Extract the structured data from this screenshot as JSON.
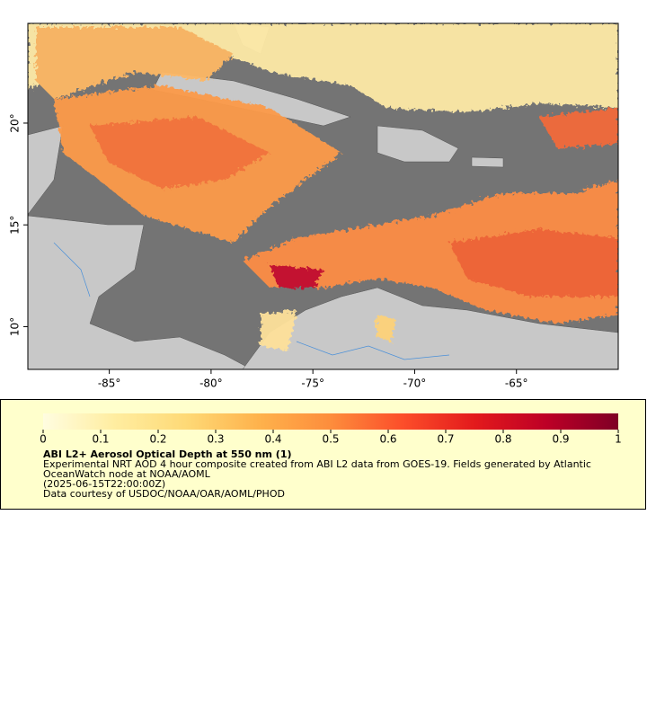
{
  "map": {
    "lon_range": [
      -89,
      -60
    ],
    "lat_range": [
      7.9,
      24.9
    ],
    "lon_ticks": [
      {
        "value": -85,
        "label": "-85°"
      },
      {
        "value": -80,
        "label": "-80°"
      },
      {
        "value": -75,
        "label": "-75°"
      },
      {
        "value": -70,
        "label": "-70°"
      },
      {
        "value": -65,
        "label": "-65°"
      }
    ],
    "lat_ticks": [
      {
        "value": 10,
        "label": "10°"
      },
      {
        "value": 15,
        "label": "15°"
      },
      {
        "value": 20,
        "label": "20°"
      }
    ]
  },
  "legend": {
    "colorbar": {
      "range": [
        0,
        1
      ],
      "ticks": [
        0,
        0.1,
        0.2,
        0.3,
        0.4,
        0.5,
        0.6,
        0.7,
        0.8,
        0.9,
        1
      ],
      "colors": [
        "#fffde0",
        "#ffeda0",
        "#fed976",
        "#feb24c",
        "#fd8d3c",
        "#fc4e2a",
        "#e31a1c",
        "#bd0026",
        "#7f0026"
      ]
    },
    "title": "ABI L2+ Aerosol Optical Depth at 550 nm (1)",
    "description": "Experimental NRT AOD 4 hour composite created from ABI L2 data from GOES-19. Fields generated by Atlantic OceanWatch node at NOAA/AOML",
    "time": "(2025-06-15T22:00:00Z)",
    "credit": "Data courtesy of USDOC/NOAA/OAR/AOML/PHOD"
  }
}
